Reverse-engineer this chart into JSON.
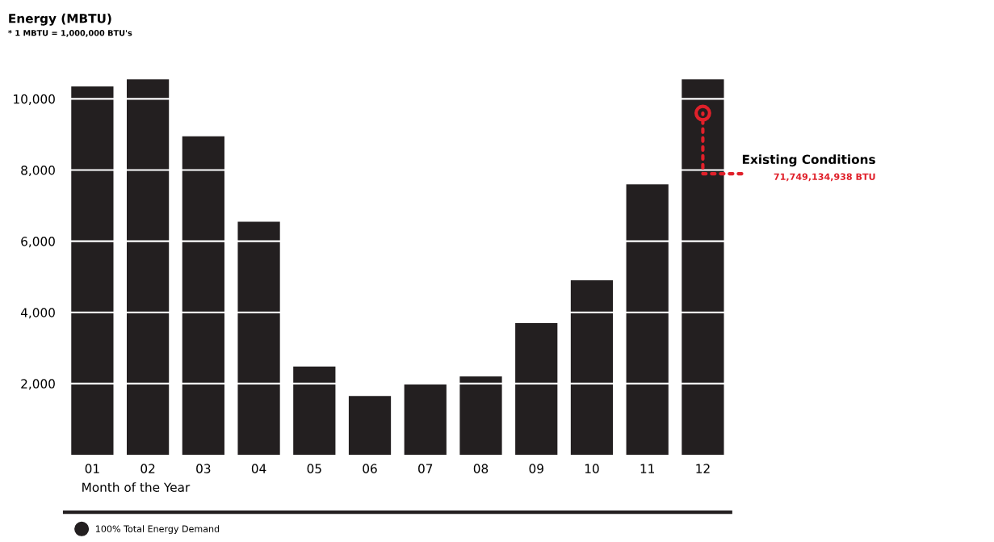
{
  "chart_data": {
    "type": "bar",
    "title": "Energy (MBTU)",
    "subtitle": "* 1 MBTU = 1,000,000 BTU's",
    "xlabel": "Month of the Year",
    "categories": [
      "01",
      "02",
      "03",
      "04",
      "05",
      "06",
      "07",
      "08",
      "09",
      "10",
      "11",
      "12"
    ],
    "series": [
      {
        "name": "100% Total Energy Demand",
        "color": "#231f20",
        "values": [
          10350,
          10550,
          8950,
          6550,
          2480,
          1650,
          1980,
          2200,
          3700,
          4900,
          7600,
          10550
        ]
      }
    ],
    "ylim": [
      0,
      10600
    ],
    "yticks": [
      {
        "value": 2000,
        "label": "2,000"
      },
      {
        "value": 4000,
        "label": "4,000"
      },
      {
        "value": 6000,
        "label": "6,000"
      },
      {
        "value": 8000,
        "label": "8,000"
      },
      {
        "value": 10000,
        "label": "10,000"
      }
    ],
    "grid": "y",
    "legend": "bottom",
    "annotations": [
      {
        "text": "Existing Conditions",
        "x": "12",
        "y": 9600
      },
      "71,749,134,938 BTU"
    ]
  }
}
